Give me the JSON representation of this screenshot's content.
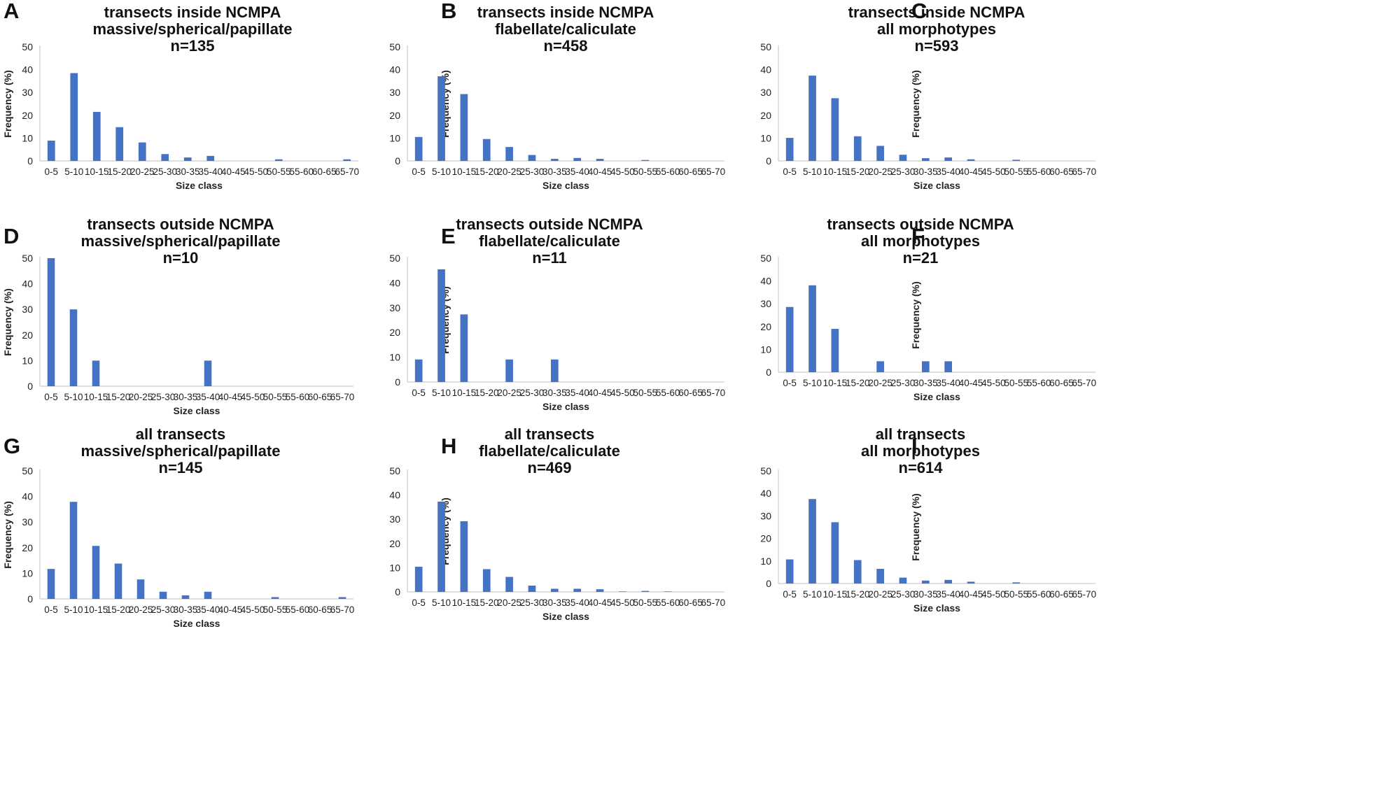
{
  "figure": {
    "bar_color": "#4472C4",
    "text_color": "#111111"
  },
  "chart_data": [
    {
      "type": "bar",
      "panel": "A",
      "title_lines": [
        "transects inside NCMPA",
        "massive/spherical/papillate",
        "n=135"
      ],
      "xlabel": "Size class",
      "ylabel": "Frequency (%)",
      "ylim": [
        0,
        50
      ],
      "yticks": [
        0,
        10,
        20,
        30,
        40,
        50
      ],
      "categories": [
        "0-5",
        "5-10",
        "10-15",
        "15-20",
        "20-25",
        "25-30",
        "30-35",
        "35-40",
        "40-45",
        "45-50",
        "50-55",
        "55-60",
        "60-65",
        "65-70"
      ],
      "values": [
        8.9,
        38.5,
        21.5,
        14.8,
        8.1,
        3.0,
        1.5,
        2.2,
        0,
        0,
        0.7,
        0,
        0,
        0.7
      ]
    },
    {
      "type": "bar",
      "panel": "B",
      "title_lines": [
        "transects inside NCMPA",
        "flabellate/calicuIate",
        "n=458"
      ],
      "xlabel": "Size class",
      "ylabel": "Frequency (%)",
      "ylim": [
        0,
        50
      ],
      "yticks": [
        0,
        10,
        20,
        30,
        40,
        50
      ],
      "categories": [
        "0-5",
        "5-10",
        "10-15",
        "15-20",
        "20-25",
        "25-30",
        "30-35",
        "35-40",
        "40-45",
        "45-50",
        "50-55",
        "55-60",
        "60-65",
        "65-70"
      ],
      "values": [
        10.5,
        37.1,
        29.3,
        9.6,
        6.1,
        2.6,
        0.9,
        1.3,
        0.9,
        0,
        0.4,
        0,
        0,
        0
      ]
    },
    {
      "type": "bar",
      "panel": "C",
      "title_lines": [
        "transects inside NCMPA",
        "all morphotypes",
        "n=593"
      ],
      "xlabel": "Size class",
      "ylabel": "Frequency (%)",
      "ylim": [
        0,
        50
      ],
      "yticks": [
        0,
        10,
        20,
        30,
        40,
        50
      ],
      "categories": [
        "0-5",
        "5-10",
        "10-15",
        "15-20",
        "20-25",
        "25-30",
        "30-35",
        "35-40",
        "40-45",
        "45-50",
        "50-55",
        "55-60",
        "60-65",
        "65-70"
      ],
      "values": [
        10.1,
        37.4,
        27.5,
        10.8,
        6.6,
        2.7,
        1.2,
        1.5,
        0.7,
        0,
        0.5,
        0,
        0,
        0
      ]
    },
    {
      "type": "bar",
      "panel": "D",
      "title_lines": [
        "transects outside NCMPA",
        "massive/spherical/papillate",
        "n=10"
      ],
      "xlabel": "Size class",
      "ylabel": "Frequency (%)",
      "ylim": [
        0,
        50
      ],
      "yticks": [
        0,
        10,
        20,
        30,
        40,
        50
      ],
      "categories": [
        "0-5",
        "5-10",
        "10-15",
        "15-20",
        "20-25",
        "25-30",
        "30-35",
        "35-40",
        "40-45",
        "45-50",
        "50-55",
        "55-60",
        "60-65",
        "65-70"
      ],
      "values": [
        50,
        30,
        10,
        0,
        0,
        0,
        0,
        10,
        0,
        0,
        0,
        0,
        0,
        0
      ]
    },
    {
      "type": "bar",
      "panel": "E",
      "title_lines": [
        "transects outside NCMPA",
        "flabellate/calicuIate",
        "n=11"
      ],
      "xlabel": "Size class",
      "ylabel": "Frequency (%)",
      "ylim": [
        0,
        50
      ],
      "yticks": [
        0,
        10,
        20,
        30,
        40,
        50
      ],
      "categories": [
        "0-5",
        "5-10",
        "10-15",
        "15-20",
        "20-25",
        "25-30",
        "30-35",
        "35-40",
        "40-45",
        "45-50",
        "50-55",
        "55-60",
        "60-65",
        "65-70"
      ],
      "values": [
        9.1,
        45.5,
        27.3,
        0,
        9.1,
        0,
        9.1,
        0,
        0,
        0,
        0,
        0,
        0,
        0
      ]
    },
    {
      "type": "bar",
      "panel": "F",
      "title_lines": [
        "transects outside NCMPA",
        "all morphotypes",
        "n=21"
      ],
      "xlabel": "Size class",
      "ylabel": "Frequency (%)",
      "ylim": [
        0,
        50
      ],
      "yticks": [
        0,
        10,
        20,
        30,
        40,
        50
      ],
      "categories": [
        "0-5",
        "5-10",
        "10-15",
        "15-20",
        "20-25",
        "25-30",
        "30-35",
        "35-40",
        "40-45",
        "45-50",
        "50-55",
        "55-60",
        "60-65",
        "65-70"
      ],
      "values": [
        28.6,
        38.1,
        19.0,
        0,
        4.8,
        0,
        4.8,
        4.8,
        0,
        0,
        0,
        0,
        0,
        0
      ]
    },
    {
      "type": "bar",
      "panel": "G",
      "title_lines": [
        "all transects",
        "massive/spherical/papillate",
        "n=145"
      ],
      "xlabel": "Size class",
      "ylabel": "Frequency (%)",
      "ylim": [
        0,
        50
      ],
      "yticks": [
        0,
        10,
        20,
        30,
        40,
        50
      ],
      "categories": [
        "0-5",
        "5-10",
        "10-15",
        "15-20",
        "20-25",
        "25-30",
        "30-35",
        "35-40",
        "40-45",
        "45-50",
        "50-55",
        "55-60",
        "60-65",
        "65-70"
      ],
      "values": [
        11.7,
        37.9,
        20.7,
        13.8,
        7.6,
        2.8,
        1.4,
        2.8,
        0,
        0,
        0.7,
        0,
        0,
        0.7
      ]
    },
    {
      "type": "bar",
      "panel": "H",
      "title_lines": [
        "all transects",
        "flabellate/calicuIate",
        "n=469"
      ],
      "xlabel": "Size class",
      "ylabel": "Frequency (%)",
      "ylim": [
        0,
        50
      ],
      "yticks": [
        0,
        10,
        20,
        30,
        40,
        50
      ],
      "categories": [
        "0-5",
        "5-10",
        "10-15",
        "15-20",
        "20-25",
        "25-30",
        "30-35",
        "35-40",
        "40-45",
        "45-50",
        "50-55",
        "55-60",
        "60-65",
        "65-70"
      ],
      "values": [
        10.4,
        37.3,
        29.2,
        9.4,
        6.2,
        2.6,
        1.3,
        1.3,
        1.1,
        0.2,
        0.4,
        0.2,
        0,
        0
      ]
    },
    {
      "type": "bar",
      "panel": "I",
      "title_lines": [
        "all transects",
        "all morphotypes",
        "n=614"
      ],
      "xlabel": "Size class",
      "ylabel": "Frequency (%)",
      "ylim": [
        0,
        50
      ],
      "yticks": [
        0,
        10,
        20,
        30,
        40,
        50
      ],
      "categories": [
        "0-5",
        "5-10",
        "10-15",
        "15-20",
        "20-25",
        "25-30",
        "30-35",
        "35-40",
        "40-45",
        "45-50",
        "50-55",
        "55-60",
        "60-65",
        "65-70"
      ],
      "values": [
        10.7,
        37.5,
        27.2,
        10.4,
        6.5,
        2.6,
        1.3,
        1.6,
        0.8,
        0,
        0.5,
        0,
        0,
        0
      ]
    }
  ]
}
